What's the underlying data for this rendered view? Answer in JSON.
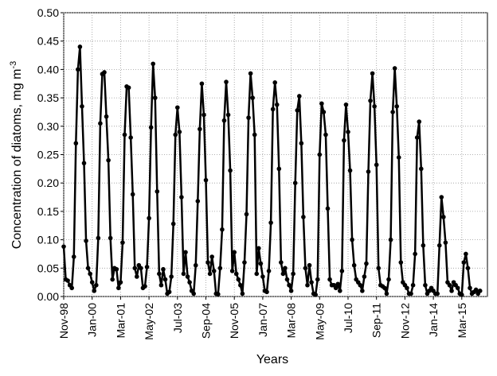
{
  "chart_data": {
    "type": "line",
    "x_label": "Years",
    "y_label": "Concentration of diatoms, mg m",
    "y_label_superscript": "-3",
    "categories": [
      "Nov-98",
      null,
      null,
      null,
      null,
      null,
      null,
      null,
      null,
      null,
      null,
      null,
      null,
      null,
      "Jan-00",
      null,
      null,
      null,
      null,
      null,
      null,
      null,
      null,
      null,
      null,
      null,
      null,
      null,
      "Mar-01",
      null,
      null,
      null,
      null,
      null,
      null,
      null,
      null,
      null,
      null,
      null,
      null,
      null,
      "May-02",
      null,
      null,
      null,
      null,
      null,
      null,
      null,
      null,
      null,
      null,
      null,
      null,
      null,
      "Jul-03",
      null,
      null,
      null,
      null,
      null,
      null,
      null,
      null,
      null,
      null,
      null,
      null,
      null,
      "Sep-04",
      null,
      null,
      null,
      null,
      null,
      null,
      null,
      null,
      null,
      null,
      null,
      null,
      null,
      "Nov-05",
      null,
      null,
      null,
      null,
      null,
      null,
      null,
      null,
      null,
      null,
      null,
      null,
      null,
      "Jan-07",
      null,
      null,
      null,
      null,
      null,
      null,
      null,
      null,
      null,
      null,
      null,
      null,
      null,
      "Mar-08",
      null,
      null,
      null,
      null,
      null,
      null,
      null,
      null,
      null,
      null,
      null,
      null,
      null,
      "May-09",
      null,
      null,
      null,
      null,
      null,
      null,
      null,
      null,
      null,
      null,
      null,
      null,
      null,
      "Jul-10",
      null,
      null,
      null,
      null,
      null,
      null,
      null,
      null,
      null,
      null,
      null,
      null,
      null,
      "Sep-11",
      null,
      null,
      null,
      null,
      null,
      null,
      null,
      null,
      null,
      null,
      null,
      null,
      null,
      "Nov-12",
      null,
      null,
      null,
      null,
      null,
      null,
      null,
      null,
      null,
      null,
      null,
      null,
      null,
      "Jan-14",
      null,
      null,
      null,
      null,
      null,
      null,
      null,
      null,
      null,
      null,
      null,
      null,
      null,
      "Mar-15",
      null,
      null,
      null,
      null,
      null,
      null,
      null,
      null,
      null
    ],
    "series": [
      {
        "name": "Diatoms",
        "color": "#000000",
        "values": [
          0.088,
          0.03,
          0.028,
          0.02,
          0.015,
          0.07,
          0.27,
          0.4,
          0.44,
          0.335,
          0.235,
          0.098,
          0.05,
          0.04,
          0.025,
          0.01,
          0.02,
          0.103,
          0.305,
          0.392,
          0.395,
          0.317,
          0.24,
          0.103,
          0.03,
          0.05,
          0.048,
          0.015,
          0.025,
          0.095,
          0.285,
          0.37,
          0.368,
          0.28,
          0.18,
          0.05,
          0.035,
          0.055,
          0.05,
          0.015,
          0.018,
          0.052,
          0.138,
          0.298,
          0.41,
          0.35,
          0.185,
          0.04,
          0.02,
          0.048,
          0.03,
          0.005,
          0.008,
          0.035,
          0.128,
          0.285,
          0.333,
          0.29,
          0.175,
          0.04,
          0.078,
          0.035,
          0.025,
          0.01,
          0.005,
          0.055,
          0.168,
          0.295,
          0.375,
          0.32,
          0.205,
          0.06,
          0.04,
          0.07,
          0.045,
          0.005,
          0.004,
          0.05,
          0.118,
          0.31,
          0.378,
          0.32,
          0.222,
          0.045,
          0.078,
          0.04,
          0.03,
          0.02,
          0.005,
          0.06,
          0.145,
          0.315,
          0.393,
          0.35,
          0.285,
          0.04,
          0.085,
          0.058,
          0.035,
          0.01,
          0.008,
          0.045,
          0.13,
          0.33,
          0.377,
          0.338,
          0.225,
          0.06,
          0.04,
          0.05,
          0.03,
          0.02,
          0.01,
          0.04,
          0.2,
          0.328,
          0.353,
          0.27,
          0.14,
          0.05,
          0.02,
          0.055,
          0.025,
          0.005,
          0.003,
          0.03,
          0.25,
          0.34,
          0.325,
          0.285,
          0.155,
          0.03,
          0.02,
          0.02,
          0.015,
          0.022,
          0.01,
          0.045,
          0.275,
          0.338,
          0.29,
          0.222,
          0.1,
          0.055,
          0.03,
          0.025,
          0.02,
          0.01,
          0.035,
          0.058,
          0.22,
          0.345,
          0.393,
          0.335,
          0.232,
          0.05,
          0.02,
          0.018,
          0.015,
          0.005,
          0.03,
          0.1,
          0.325,
          0.402,
          0.335,
          0.245,
          0.06,
          0.025,
          0.02,
          0.015,
          0.005,
          0.005,
          0.02,
          0.075,
          0.28,
          0.308,
          0.225,
          0.09,
          0.02,
          0.005,
          0.01,
          0.015,
          0.01,
          0.005,
          0.005,
          0.09,
          0.175,
          0.14,
          0.095,
          0.025,
          0.02,
          0.01,
          0.025,
          0.02,
          0.015,
          0.005,
          0.003,
          0.06,
          0.075,
          0.05,
          0.015,
          0.005,
          0.008,
          0.012,
          0.005,
          0.01
        ]
      }
    ],
    "ylim": [
      0,
      0.5
    ],
    "yticks": [
      {
        "value": 0,
        "label": "0.00"
      },
      {
        "value": 0.05,
        "label": "0.05"
      },
      {
        "value": 0.1,
        "label": "0.10"
      },
      {
        "value": 0.15,
        "label": "0.15"
      },
      {
        "value": 0.2,
        "label": "0.20"
      },
      {
        "value": 0.25,
        "label": "0.25"
      },
      {
        "value": 0.3,
        "label": "0.30"
      },
      {
        "value": 0.35,
        "label": "0.35"
      },
      {
        "value": 0.4,
        "label": "0.40"
      },
      {
        "value": 0.45,
        "label": "0.45"
      },
      {
        "value": 0.5,
        "label": "0.50"
      }
    ],
    "grid": true
  }
}
